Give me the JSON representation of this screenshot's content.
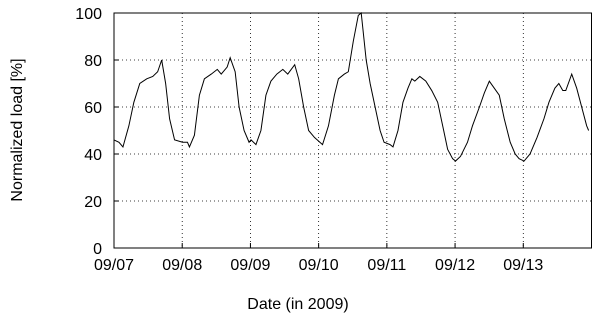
{
  "chart_data": {
    "type": "line",
    "xlabel": "Date (in 2009)",
    "ylabel": "Normalized load [%]",
    "xlim": [
      7,
      14
    ],
    "ylim": [
      0,
      100
    ],
    "xticks": [
      {
        "value": 7,
        "label": "09/07"
      },
      {
        "value": 8,
        "label": "09/08"
      },
      {
        "value": 9,
        "label": "09/09"
      },
      {
        "value": 10,
        "label": "09/10"
      },
      {
        "value": 11,
        "label": "09/11"
      },
      {
        "value": 12,
        "label": "09/12"
      },
      {
        "value": 13,
        "label": "09/13"
      }
    ],
    "yticks": [
      0,
      20,
      40,
      60,
      80,
      100
    ],
    "grid": true,
    "color": "#000000",
    "x": [
      7.0,
      7.073,
      7.131,
      7.218,
      7.291,
      7.378,
      7.48,
      7.568,
      7.64,
      7.699,
      7.757,
      7.815,
      7.888,
      8.004,
      8.077,
      8.106,
      8.179,
      8.252,
      8.325,
      8.426,
      8.514,
      8.572,
      8.659,
      8.703,
      8.776,
      8.834,
      8.907,
      8.98,
      9.009,
      9.081,
      9.154,
      9.227,
      9.3,
      9.387,
      9.475,
      9.547,
      9.649,
      9.707,
      9.78,
      9.853,
      9.94,
      10.057,
      10.144,
      10.231,
      10.29,
      10.377,
      10.435,
      10.508,
      10.581,
      10.624,
      10.697,
      10.755,
      10.828,
      10.901,
      10.959,
      11.047,
      11.09,
      11.163,
      11.236,
      11.309,
      11.367,
      11.41,
      11.483,
      11.571,
      11.658,
      11.745,
      11.833,
      11.891,
      11.964,
      12.007,
      12.08,
      12.182,
      12.255,
      12.357,
      12.429,
      12.502,
      12.575,
      12.648,
      12.721,
      12.808,
      12.881,
      12.939,
      13.012,
      13.099,
      13.201,
      13.303,
      13.376,
      13.463,
      13.521,
      13.579,
      13.623,
      13.71,
      13.783,
      13.856,
      13.929,
      13.958
    ],
    "values": [
      46,
      45,
      43,
      52,
      62,
      70,
      72,
      73,
      75,
      80,
      70,
      55,
      46,
      45,
      45,
      43,
      48,
      65,
      72,
      74,
      76,
      74,
      77,
      81,
      75,
      60,
      50,
      45,
      46,
      44,
      50,
      65,
      71,
      74,
      76,
      74,
      78,
      72,
      60,
      50,
      47,
      44,
      52,
      65,
      72,
      74,
      75,
      88,
      99,
      100,
      80,
      70,
      60,
      50,
      45,
      44,
      43,
      50,
      62,
      68,
      72,
      71,
      73,
      71,
      67,
      62,
      50,
      42,
      38,
      37,
      39,
      45,
      52,
      60,
      66,
      71,
      68,
      65,
      55,
      45,
      40,
      38,
      37,
      40,
      47,
      55,
      62,
      68,
      70,
      67,
      67,
      74,
      68,
      60,
      52,
      50
    ]
  }
}
